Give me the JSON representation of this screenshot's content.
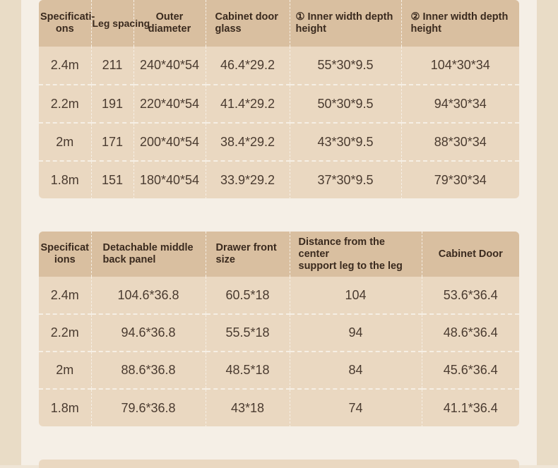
{
  "table1": {
    "headers": [
      "Specificati-\nons",
      "Leg spacing",
      "Outer\ndiameter",
      "Cabinet door\nglass",
      "① Inner width depth\nheight",
      "② Inner width depth\nheight"
    ],
    "rows": [
      [
        "2.4m",
        "211",
        "240*40*54",
        "46.4*29.2",
        "55*30*9.5",
        "104*30*34"
      ],
      [
        "2.2m",
        "191",
        "220*40*54",
        "41.4*29.2",
        "50*30*9.5",
        "94*30*34"
      ],
      [
        "2m",
        "171",
        "200*40*54",
        "38.4*29.2",
        "43*30*9.5",
        "88*30*34"
      ],
      [
        "1.8m",
        "151",
        "180*40*54",
        "33.9*29.2",
        "37*30*9.5",
        "79*30*34"
      ]
    ]
  },
  "table2": {
    "headers": [
      "Specificat\nions",
      "Detachable middle\nback panel",
      "Drawer front\nsize",
      "Distance from the center\nsupport leg to the leg",
      "Cabinet Door"
    ],
    "rows": [
      [
        "2.4m",
        "104.6*36.8",
        "60.5*18",
        "104",
        "53.6*36.4"
      ],
      [
        "2.2m",
        "94.6*36.8",
        "55.5*18",
        "94",
        "48.6*36.4"
      ],
      [
        "2m",
        "88.6*36.8",
        "48.5*18",
        "84",
        "45.6*36.4"
      ],
      [
        "1.8m",
        "79.6*36.8",
        "43*18",
        "74",
        "41.1*36.4"
      ]
    ]
  }
}
